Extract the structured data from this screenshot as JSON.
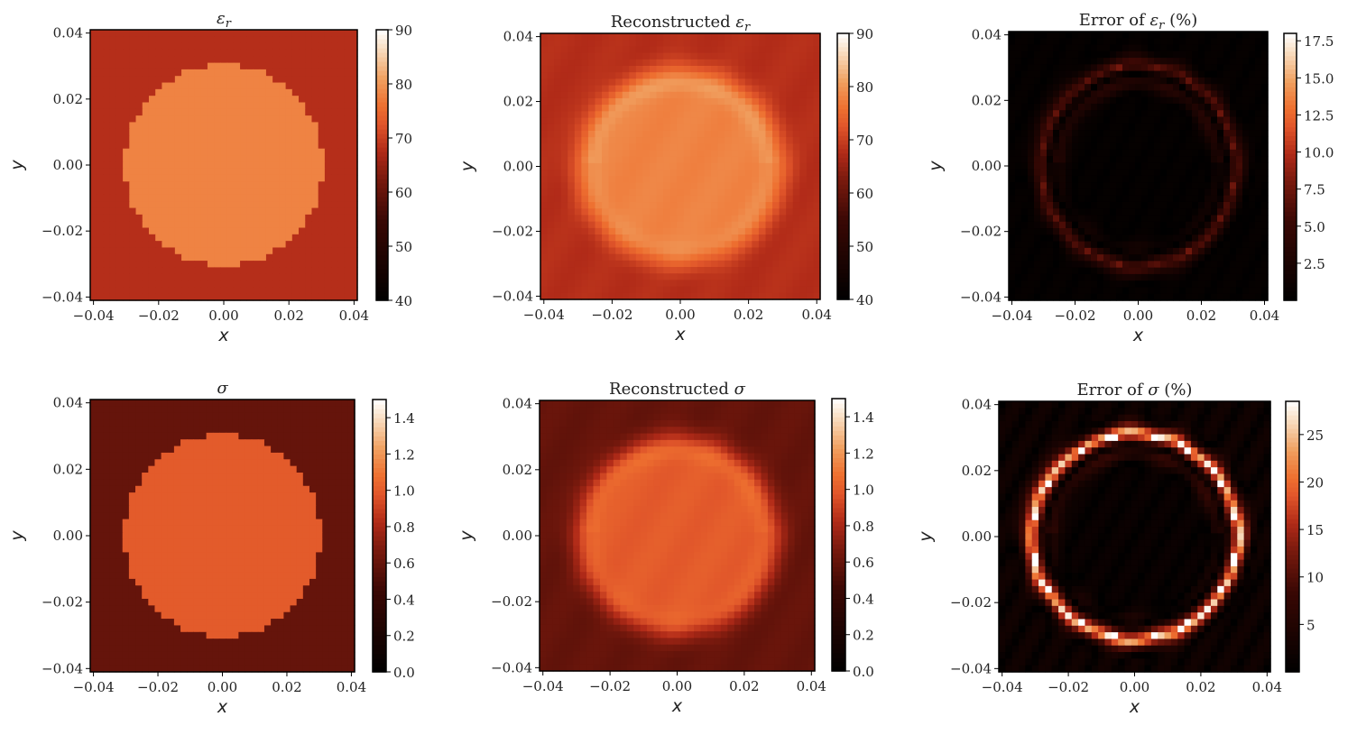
{
  "chart_data": [
    {
      "type": "heatmap",
      "quantity": "eps",
      "kind": "true",
      "title": {
        "prefix": "",
        "sym": "ε",
        "sub": "r",
        "suffix": ""
      },
      "xlabel": "x",
      "ylabel": "y",
      "xlim": [
        -0.041,
        0.041
      ],
      "ylim": [
        -0.041,
        0.041
      ],
      "xticks": [
        "−0.04",
        "−0.02",
        "0.00",
        "0.02",
        "0.04"
      ],
      "yticks": [
        "−0.04",
        "−0.02",
        "0.00",
        "0.02",
        "0.04"
      ],
      "clim": [
        40,
        90
      ],
      "cticks": [
        40,
        50,
        60,
        70,
        80,
        90
      ],
      "ctick_labels": [
        "40",
        "50",
        "60",
        "70",
        "80",
        "90"
      ],
      "background_value": 68,
      "inclusion_value": 78,
      "inclusion_radius": 0.03,
      "grid": false
    },
    {
      "type": "heatmap",
      "quantity": "eps",
      "kind": "reconstructed",
      "title": {
        "prefix": "Reconstructed ",
        "sym": "ε",
        "sub": "r",
        "suffix": ""
      },
      "xlabel": "x",
      "ylabel": "y",
      "xlim": [
        -0.041,
        0.041
      ],
      "ylim": [
        -0.041,
        0.041
      ],
      "xticks": [
        "−0.04",
        "−0.02",
        "0.00",
        "0.02",
        "0.04"
      ],
      "yticks": [
        "−0.04",
        "−0.02",
        "0.00",
        "0.02",
        "0.04"
      ],
      "clim": [
        40,
        90
      ],
      "cticks": [
        40,
        50,
        60,
        70,
        80,
        90
      ],
      "ctick_labels": [
        "40",
        "50",
        "60",
        "70",
        "80",
        "90"
      ],
      "grid": false
    },
    {
      "type": "heatmap",
      "quantity": "eps",
      "kind": "error",
      "title": {
        "prefix": "Error of ",
        "sym": "ε",
        "sub": "r",
        "suffix": " (%)"
      },
      "xlabel": "x",
      "ylabel": "y",
      "xlim": [
        -0.041,
        0.041
      ],
      "ylim": [
        -0.041,
        0.041
      ],
      "xticks": [
        "−0.04",
        "−0.02",
        "0.00",
        "0.02",
        "0.04"
      ],
      "yticks": [
        "−0.04",
        "−0.02",
        "0.00",
        "0.02",
        "0.04"
      ],
      "clim": [
        0,
        18
      ],
      "cticks": [
        2.5,
        5,
        7.5,
        10,
        12.5,
        15,
        17.5
      ],
      "ctick_labels": [
        "2.5",
        "5.0",
        "7.5",
        "10.0",
        "12.5",
        "15.0",
        "17.5"
      ],
      "grid": false
    },
    {
      "type": "heatmap",
      "quantity": "sigma",
      "kind": "true",
      "title": {
        "prefix": "",
        "sym": "σ",
        "sub": "",
        "suffix": ""
      },
      "xlabel": "x",
      "ylabel": "y",
      "xlim": [
        -0.041,
        0.041
      ],
      "ylim": [
        -0.041,
        0.041
      ],
      "xticks": [
        "−0.04",
        "−0.02",
        "0.00",
        "0.02",
        "0.04"
      ],
      "yticks": [
        "−0.04",
        "−0.02",
        "0.00",
        "0.02",
        "0.04"
      ],
      "clim": [
        0,
        1.5
      ],
      "cticks": [
        0,
        0.2,
        0.4,
        0.6,
        0.8,
        1.0,
        1.2,
        1.4
      ],
      "ctick_labels": [
        "0.0",
        "0.2",
        "0.4",
        "0.6",
        "0.8",
        "1.0",
        "1.2",
        "1.4"
      ],
      "background_value": 0.6,
      "inclusion_value": 1.0,
      "inclusion_radius": 0.03,
      "grid": false
    },
    {
      "type": "heatmap",
      "quantity": "sigma",
      "kind": "reconstructed",
      "title": {
        "prefix": "Reconstructed ",
        "sym": "σ",
        "sub": "",
        "suffix": ""
      },
      "xlabel": "x",
      "ylabel": "y",
      "xlim": [
        -0.041,
        0.041
      ],
      "ylim": [
        -0.041,
        0.041
      ],
      "xticks": [
        "−0.04",
        "−0.02",
        "0.00",
        "0.02",
        "0.04"
      ],
      "yticks": [
        "−0.04",
        "−0.02",
        "0.00",
        "0.02",
        "0.04"
      ],
      "clim": [
        0,
        1.5
      ],
      "cticks": [
        0,
        0.2,
        0.4,
        0.6,
        0.8,
        1.0,
        1.2,
        1.4
      ],
      "ctick_labels": [
        "0.0",
        "0.2",
        "0.4",
        "0.6",
        "0.8",
        "1.0",
        "1.2",
        "1.4"
      ],
      "grid": false
    },
    {
      "type": "heatmap",
      "quantity": "sigma",
      "kind": "error",
      "title": {
        "prefix": "Error of ",
        "sym": "σ",
        "sub": "",
        "suffix": " (%)"
      },
      "xlabel": "x",
      "ylabel": "y",
      "xlim": [
        -0.041,
        0.041
      ],
      "ylim": [
        -0.041,
        0.041
      ],
      "xticks": [
        "−0.04",
        "−0.02",
        "0.00",
        "0.02",
        "0.04"
      ],
      "yticks": [
        "−0.04",
        "−0.02",
        "0.00",
        "0.02",
        "0.04"
      ],
      "clim": [
        0,
        28.5
      ],
      "cticks": [
        5,
        10,
        15,
        20,
        25
      ],
      "ctick_labels": [
        "5",
        "10",
        "15",
        "20",
        "25"
      ],
      "grid": false
    }
  ],
  "colormap": [
    "#000000",
    "#3a0804",
    "#7a1a0e",
    "#b02a18",
    "#e0552a",
    "#ee7030",
    "#f0a060",
    "#f8d8b8",
    "#ffffff"
  ]
}
